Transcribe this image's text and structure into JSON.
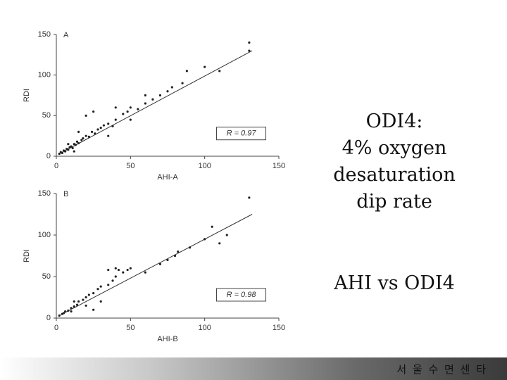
{
  "chart_data": [
    {
      "type": "scatter",
      "panel": "A",
      "xlabel": "AHI-A",
      "ylabel": "RDI",
      "annotation": "R = 0.97",
      "xlim": [
        0,
        150
      ],
      "ylim": [
        0,
        150
      ],
      "xticks": [
        0,
        50,
        100,
        150
      ],
      "yticks": [
        0,
        50,
        100,
        150
      ],
      "color": "#222222",
      "x": [
        2,
        3,
        4,
        5,
        6,
        7,
        8,
        9,
        10,
        11,
        12,
        13,
        14,
        15,
        17,
        18,
        20,
        22,
        24,
        26,
        28,
        30,
        32,
        35,
        38,
        40,
        45,
        48,
        50,
        55,
        60,
        65,
        70,
        75,
        78,
        85,
        88,
        100,
        110,
        130,
        130,
        20,
        25,
        40,
        60,
        35,
        15,
        50,
        8,
        12
      ],
      "y": [
        3,
        5,
        4,
        7,
        6,
        9,
        8,
        11,
        12,
        10,
        15,
        14,
        18,
        16,
        20,
        22,
        25,
        24,
        30,
        28,
        33,
        35,
        38,
        40,
        37,
        45,
        52,
        55,
        60,
        58,
        65,
        70,
        75,
        80,
        85,
        90,
        105,
        110,
        105,
        140,
        130,
        50,
        55,
        60,
        75,
        25,
        30,
        45,
        15,
        6
      ],
      "trend": {
        "x": [
          2,
          132
        ],
        "y": [
          3,
          130
        ]
      }
    },
    {
      "type": "scatter",
      "panel": "B",
      "xlabel": "AHI-B",
      "ylabel": "RDI",
      "annotation": "R = 0.98",
      "xlim": [
        0,
        150
      ],
      "ylim": [
        0,
        150
      ],
      "xticks": [
        0,
        50,
        100,
        150
      ],
      "yticks": [
        0,
        50,
        100,
        150
      ],
      "color": "#222222",
      "x": [
        2,
        4,
        5,
        6,
        8,
        10,
        12,
        14,
        15,
        18,
        20,
        22,
        25,
        28,
        30,
        35,
        38,
        40,
        45,
        48,
        50,
        35,
        40,
        42,
        20,
        25,
        30,
        60,
        70,
        75,
        80,
        82,
        90,
        100,
        105,
        110,
        115,
        130,
        10,
        12
      ],
      "y": [
        3,
        5,
        6,
        8,
        9,
        12,
        14,
        16,
        20,
        22,
        25,
        28,
        30,
        35,
        38,
        40,
        45,
        50,
        55,
        58,
        60,
        58,
        60,
        58,
        15,
        10,
        20,
        55,
        65,
        70,
        75,
        80,
        85,
        95,
        110,
        90,
        100,
        145,
        8,
        20
      ],
      "trend": {
        "x": [
          2,
          132
        ],
        "y": [
          3,
          125
        ]
      }
    }
  ],
  "slide": {
    "lines": [
      "ODI4:",
      "4% oxygen",
      "desaturation",
      "dip rate"
    ],
    "subtitle": "AHI vs ODI4",
    "footer": "서 울 수 면 센 타"
  }
}
